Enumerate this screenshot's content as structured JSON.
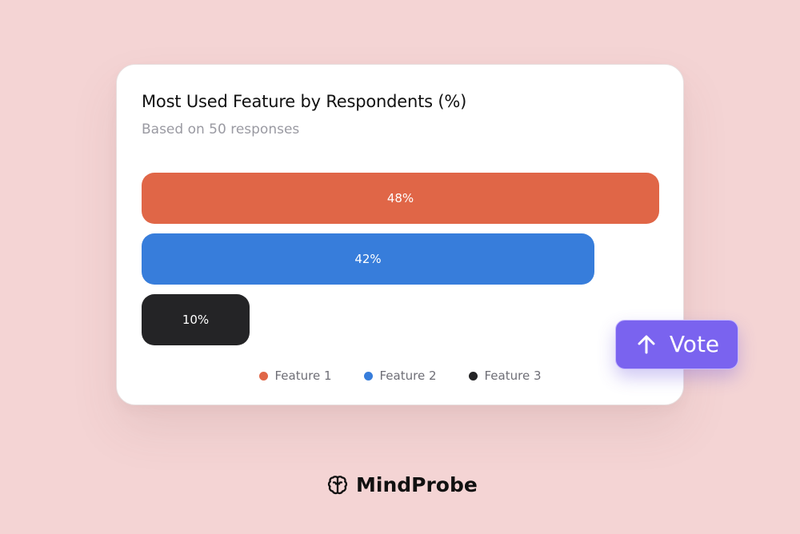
{
  "colors": {
    "background": "#f4d4d4",
    "feature_1": "#e06647",
    "feature_2": "#377ddb",
    "feature_3": "#242426",
    "vote": "#7a63ef"
  },
  "card": {
    "title": "Most Used Feature by Respondents (%)",
    "subtitle": "Based on 50 responses"
  },
  "chart_data": {
    "type": "bar",
    "orientation": "horizontal",
    "title": "Most Used Feature by Respondents (%)",
    "subtitle": "Based on 50 responses",
    "categories": [
      "Feature 1",
      "Feature 2",
      "Feature 3"
    ],
    "values": [
      48,
      42,
      10
    ],
    "data_labels": [
      "48%",
      "42%",
      "10%"
    ],
    "colors": [
      "#e06647",
      "#377ddb",
      "#242426"
    ],
    "xlim": [
      0,
      48
    ],
    "grid": false,
    "legend": "bottom-center",
    "legend_entries": [
      "Feature 1",
      "Feature 2",
      "Feature 3"
    ]
  },
  "vote_button": {
    "label": "Vote",
    "icon": "arrow-up-icon"
  },
  "brand": {
    "name": "MindProbe",
    "icon": "brain-icon"
  }
}
